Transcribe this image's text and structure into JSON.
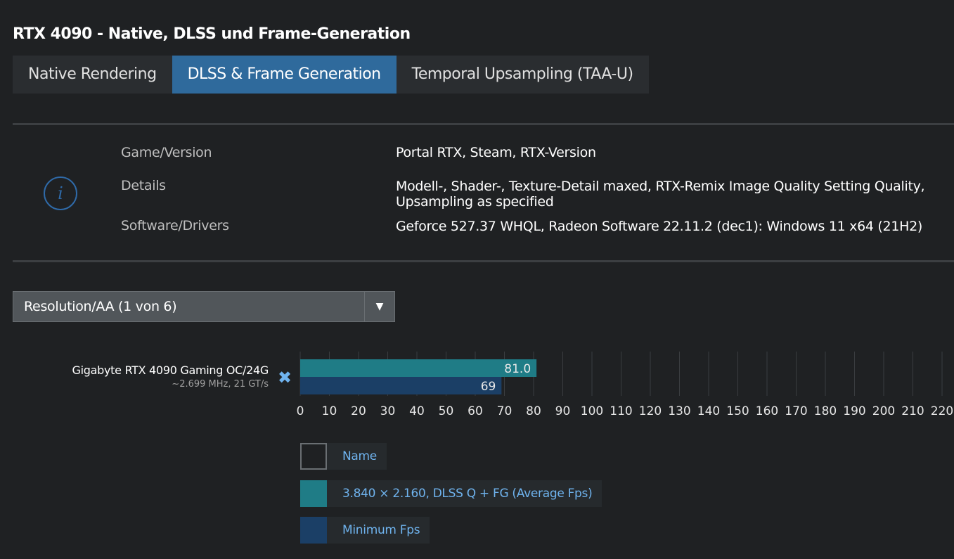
{
  "title": "RTX 4090 - Native, DLSS und Frame-Generation",
  "tabs": [
    {
      "label": "Native Rendering",
      "active": false
    },
    {
      "label": "DLSS & Frame Generation",
      "active": true
    },
    {
      "label": "Temporal Upsampling (TAA-U)",
      "active": false
    }
  ],
  "info": {
    "icon": "info-icon",
    "rows": [
      {
        "label": "Game/Version",
        "value": "Portal RTX, Steam, RTX-Version"
      },
      {
        "label": "Details",
        "value": "Modell-, Shader-, Texture-Detail maxed, RTX-Remix Image Quality Setting Quality,",
        "value2": "Upsampling as specified"
      },
      {
        "label": "Software/Drivers",
        "value": "Geforce 527.37 WHQL, Radeon Software 22.11.2 (dec1): Windows 11 x64 (21H2)"
      }
    ]
  },
  "select": {
    "value": "Resolution/AA (1 von 6)",
    "arrow": "▼"
  },
  "gpu": {
    "name": "Gigabyte RTX 4090 Gaming OC/24G",
    "sub": "~2.699 MHz, 21 GT/s",
    "remove": "✖"
  },
  "colors": {
    "avg": "#1f7c86",
    "min": "#1b3f66",
    "accent": "#2f6a9c",
    "grid": "#3a3d40"
  },
  "chart_data": {
    "type": "bar",
    "orientation": "horizontal",
    "categories": [
      "Gigabyte RTX 4090 Gaming OC/24G"
    ],
    "series": [
      {
        "name": "3.840 × 2.160, DLSS Q + FG (Average Fps)",
        "values": [
          81.0
        ],
        "labels": [
          "81.0"
        ]
      },
      {
        "name": "Minimum Fps",
        "values": [
          69
        ],
        "labels": [
          "69"
        ]
      }
    ],
    "xlim": [
      0,
      220
    ],
    "xticks": [
      0,
      10,
      20,
      30,
      40,
      50,
      60,
      70,
      80,
      90,
      100,
      110,
      120,
      130,
      140,
      150,
      160,
      170,
      180,
      190,
      200,
      210,
      220
    ],
    "grid": true,
    "legend_position": "bottom-left"
  },
  "legend": [
    {
      "label": "Name"
    },
    {
      "label": "3.840 × 2.160, DLSS Q + FG (Average Fps)"
    },
    {
      "label": "Minimum Fps"
    }
  ]
}
